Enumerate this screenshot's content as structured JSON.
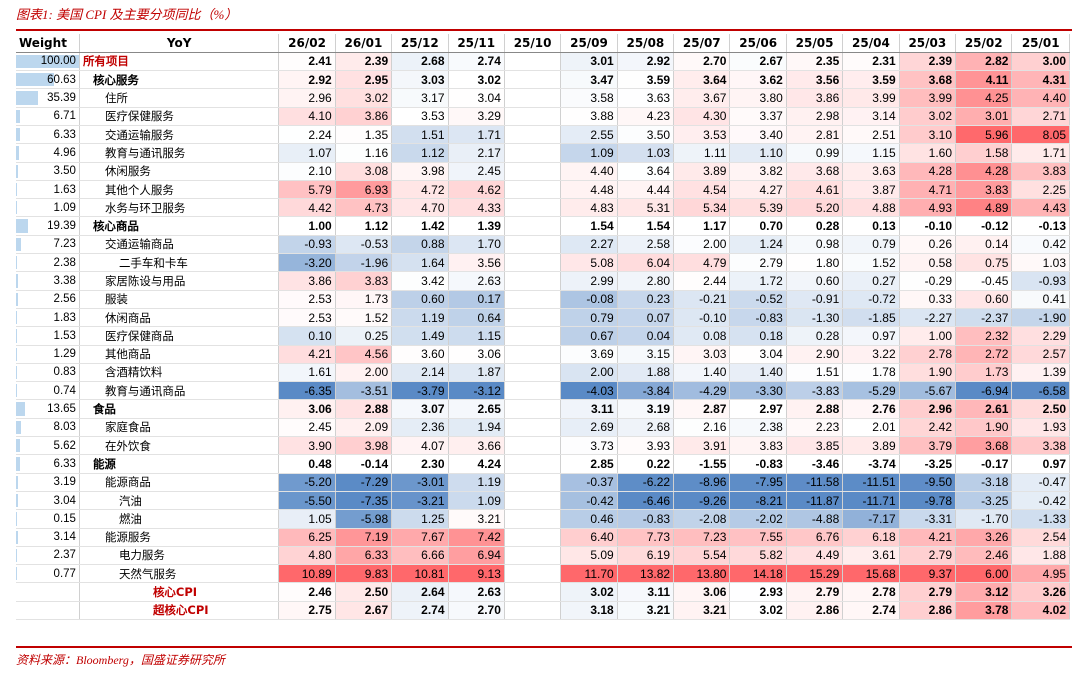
{
  "title": "图表1:  美国 CPI 及主要分项同比（%）",
  "source": "资料来源：Bloomberg，国盛证券研究所",
  "columns": [
    "Weight",
    "YoY",
    "26/02",
    "26/01",
    "25/12",
    "25/11",
    "25/10",
    "25/09",
    "25/08",
    "25/07",
    "25/06",
    "25/05",
    "25/04",
    "25/03",
    "25/02",
    "25/01"
  ],
  "rows": [
    {
      "weight": "100.00",
      "name": "所有项目",
      "indent": 0,
      "bold": true,
      "red": true,
      "values": [
        "2.41",
        "2.39",
        "2.68",
        "2.74",
        "",
        "3.01",
        "2.92",
        "2.70",
        "2.67",
        "2.35",
        "2.31",
        "2.39",
        "2.82",
        "3.00"
      ]
    },
    {
      "weight": "60.63",
      "name": "核心服务",
      "indent": 1,
      "bold": true,
      "red": false,
      "values": [
        "2.92",
        "2.95",
        "3.03",
        "3.02",
        "",
        "3.47",
        "3.59",
        "3.64",
        "3.62",
        "3.56",
        "3.59",
        "3.68",
        "4.11",
        "4.31"
      ]
    },
    {
      "weight": "35.39",
      "name": "住所",
      "indent": 2,
      "bold": false,
      "red": false,
      "values": [
        "2.96",
        "3.02",
        "3.17",
        "3.04",
        "",
        "3.58",
        "3.63",
        "3.67",
        "3.80",
        "3.86",
        "3.99",
        "3.99",
        "4.25",
        "4.40"
      ]
    },
    {
      "weight": "6.71",
      "name": "医疗保健服务",
      "indent": 2,
      "bold": false,
      "red": false,
      "values": [
        "4.10",
        "3.86",
        "3.53",
        "3.29",
        "",
        "3.88",
        "4.23",
        "4.30",
        "3.37",
        "2.98",
        "3.14",
        "3.02",
        "3.01",
        "2.71"
      ]
    },
    {
      "weight": "6.33",
      "name": "交通运输服务",
      "indent": 2,
      "bold": false,
      "red": false,
      "values": [
        "2.24",
        "1.35",
        "1.51",
        "1.71",
        "",
        "2.55",
        "3.50",
        "3.53",
        "3.40",
        "2.81",
        "2.51",
        "3.10",
        "5.96",
        "8.05"
      ]
    },
    {
      "weight": "4.96",
      "name": "教育与通讯服务",
      "indent": 2,
      "bold": false,
      "red": false,
      "values": [
        "1.07",
        "1.16",
        "1.12",
        "2.17",
        "",
        "1.09",
        "1.03",
        "1.11",
        "1.10",
        "0.99",
        "1.15",
        "1.60",
        "1.58",
        "1.71"
      ]
    },
    {
      "weight": "3.50",
      "name": "休闲服务",
      "indent": 2,
      "bold": false,
      "red": false,
      "values": [
        "2.10",
        "3.08",
        "3.98",
        "2.45",
        "",
        "4.40",
        "3.64",
        "3.89",
        "3.82",
        "3.68",
        "3.63",
        "4.28",
        "4.28",
        "3.83"
      ]
    },
    {
      "weight": "1.63",
      "name": "其他个人服务",
      "indent": 2,
      "bold": false,
      "red": false,
      "values": [
        "5.79",
        "6.93",
        "4.72",
        "4.62",
        "",
        "4.48",
        "4.44",
        "4.54",
        "4.27",
        "4.61",
        "3.87",
        "4.71",
        "3.83",
        "2.25"
      ]
    },
    {
      "weight": "1.09",
      "name": "水务与环卫服务",
      "indent": 2,
      "bold": false,
      "red": false,
      "values": [
        "4.42",
        "4.73",
        "4.70",
        "4.33",
        "",
        "4.83",
        "5.31",
        "5.34",
        "5.39",
        "5.20",
        "4.88",
        "4.93",
        "4.89",
        "4.43"
      ]
    },
    {
      "weight": "19.39",
      "name": "核心商品",
      "indent": 1,
      "bold": true,
      "red": false,
      "values": [
        "1.00",
        "1.12",
        "1.42",
        "1.39",
        "",
        "1.54",
        "1.54",
        "1.17",
        "0.70",
        "0.28",
        "0.13",
        "-0.10",
        "-0.12",
        "-0.13"
      ]
    },
    {
      "weight": "7.23",
      "name": "交通运输商品",
      "indent": 2,
      "bold": false,
      "red": false,
      "values": [
        "-0.93",
        "-0.53",
        "0.88",
        "1.70",
        "",
        "2.27",
        "2.58",
        "2.00",
        "1.24",
        "0.98",
        "0.79",
        "0.26",
        "0.14",
        "0.42"
      ]
    },
    {
      "weight": "2.38",
      "name": "二手车和卡车",
      "indent": 3,
      "bold": false,
      "red": false,
      "values": [
        "-3.20",
        "-1.96",
        "1.64",
        "3.56",
        "",
        "5.08",
        "6.04",
        "4.79",
        "2.79",
        "1.80",
        "1.52",
        "0.58",
        "0.75",
        "1.03"
      ]
    },
    {
      "weight": "3.38",
      "name": "家居陈设与用品",
      "indent": 2,
      "bold": false,
      "red": false,
      "values": [
        "3.86",
        "3.83",
        "3.42",
        "2.63",
        "",
        "2.99",
        "2.80",
        "2.44",
        "1.72",
        "0.60",
        "0.27",
        "-0.29",
        "-0.45",
        "-0.93"
      ]
    },
    {
      "weight": "2.56",
      "name": "服装",
      "indent": 2,
      "bold": false,
      "red": false,
      "values": [
        "2.53",
        "1.73",
        "0.60",
        "0.17",
        "",
        "-0.08",
        "0.23",
        "-0.21",
        "-0.52",
        "-0.91",
        "-0.72",
        "0.33",
        "0.60",
        "0.41"
      ]
    },
    {
      "weight": "1.83",
      "name": "休闲商品",
      "indent": 2,
      "bold": false,
      "red": false,
      "values": [
        "2.53",
        "1.52",
        "1.19",
        "0.64",
        "",
        "0.79",
        "0.07",
        "-0.10",
        "-0.83",
        "-1.30",
        "-1.85",
        "-2.27",
        "-2.37",
        "-1.90"
      ]
    },
    {
      "weight": "1.53",
      "name": "医疗保健商品",
      "indent": 2,
      "bold": false,
      "red": false,
      "values": [
        "0.10",
        "0.25",
        "1.49",
        "1.15",
        "",
        "0.67",
        "0.04",
        "0.08",
        "0.18",
        "0.28",
        "0.97",
        "1.00",
        "2.32",
        "2.29"
      ]
    },
    {
      "weight": "1.29",
      "name": "其他商品",
      "indent": 2,
      "bold": false,
      "red": false,
      "values": [
        "4.21",
        "4.56",
        "3.60",
        "3.06",
        "",
        "3.69",
        "3.15",
        "3.03",
        "3.04",
        "2.90",
        "3.22",
        "2.78",
        "2.72",
        "2.57"
      ]
    },
    {
      "weight": "0.83",
      "name": "含酒精饮料",
      "indent": 2,
      "bold": false,
      "red": false,
      "values": [
        "1.61",
        "2.00",
        "2.14",
        "1.87",
        "",
        "2.00",
        "1.88",
        "1.40",
        "1.40",
        "1.51",
        "1.78",
        "1.90",
        "1.73",
        "1.39"
      ]
    },
    {
      "weight": "0.74",
      "name": "教育与通讯商品",
      "indent": 2,
      "bold": false,
      "red": false,
      "values": [
        "-6.35",
        "-3.51",
        "-3.79",
        "-3.12",
        "",
        "-4.03",
        "-3.84",
        "-4.29",
        "-3.30",
        "-3.83",
        "-5.29",
        "-5.67",
        "-6.94",
        "-6.58"
      ]
    },
    {
      "weight": "13.65",
      "name": "食品",
      "indent": 1,
      "bold": true,
      "red": false,
      "values": [
        "3.06",
        "2.88",
        "3.07",
        "2.65",
        "",
        "3.11",
        "3.19",
        "2.87",
        "2.97",
        "2.88",
        "2.76",
        "2.96",
        "2.61",
        "2.50"
      ]
    },
    {
      "weight": "8.03",
      "name": "家庭食品",
      "indent": 2,
      "bold": false,
      "red": false,
      "values": [
        "2.45",
        "2.09",
        "2.36",
        "1.94",
        "",
        "2.69",
        "2.68",
        "2.16",
        "2.38",
        "2.23",
        "2.01",
        "2.42",
        "1.90",
        "1.93"
      ]
    },
    {
      "weight": "5.62",
      "name": "在外饮食",
      "indent": 2,
      "bold": false,
      "red": false,
      "values": [
        "3.90",
        "3.98",
        "4.07",
        "3.66",
        "",
        "3.73",
        "3.93",
        "3.91",
        "3.83",
        "3.85",
        "3.89",
        "3.79",
        "3.68",
        "3.38"
      ]
    },
    {
      "weight": "6.33",
      "name": "能源",
      "indent": 1,
      "bold": true,
      "red": false,
      "values": [
        "0.48",
        "-0.14",
        "2.30",
        "4.24",
        "",
        "2.85",
        "0.22",
        "-1.55",
        "-0.83",
        "-3.46",
        "-3.74",
        "-3.25",
        "-0.17",
        "0.97"
      ]
    },
    {
      "weight": "3.19",
      "name": "能源商品",
      "indent": 2,
      "bold": false,
      "red": false,
      "values": [
        "-5.20",
        "-7.29",
        "-3.01",
        "1.19",
        "",
        "-0.37",
        "-6.22",
        "-8.96",
        "-7.95",
        "-11.58",
        "-11.51",
        "-9.50",
        "-3.18",
        "-0.47"
      ]
    },
    {
      "weight": "3.04",
      "name": "汽油",
      "indent": 3,
      "bold": false,
      "red": false,
      "values": [
        "-5.50",
        "-7.35",
        "-3.21",
        "1.09",
        "",
        "-0.42",
        "-6.46",
        "-9.26",
        "-8.21",
        "-11.87",
        "-11.71",
        "-9.78",
        "-3.25",
        "-0.42"
      ]
    },
    {
      "weight": "0.15",
      "name": "燃油",
      "indent": 3,
      "bold": false,
      "red": false,
      "values": [
        "1.05",
        "-5.98",
        "1.25",
        "3.21",
        "",
        "0.46",
        "-0.83",
        "-2.08",
        "-2.02",
        "-4.88",
        "-7.17",
        "-3.31",
        "-1.70",
        "-1.33"
      ]
    },
    {
      "weight": "3.14",
      "name": "能源服务",
      "indent": 2,
      "bold": false,
      "red": false,
      "values": [
        "6.25",
        "7.19",
        "7.67",
        "7.42",
        "",
        "6.40",
        "7.73",
        "7.23",
        "7.55",
        "6.76",
        "6.18",
        "4.21",
        "3.26",
        "2.54"
      ]
    },
    {
      "weight": "2.37",
      "name": "电力服务",
      "indent": 3,
      "bold": false,
      "red": false,
      "values": [
        "4.80",
        "6.33",
        "6.66",
        "6.94",
        "",
        "5.09",
        "6.19",
        "5.54",
        "5.82",
        "4.49",
        "3.61",
        "2.79",
        "2.46",
        "1.88"
      ]
    },
    {
      "weight": "0.77",
      "name": "天然气服务",
      "indent": 3,
      "bold": false,
      "red": false,
      "values": [
        "10.89",
        "9.83",
        "10.81",
        "9.13",
        "",
        "11.70",
        "13.82",
        "13.80",
        "14.18",
        "15.29",
        "15.68",
        "9.37",
        "6.00",
        "4.95"
      ]
    },
    {
      "weight": "",
      "name": "核心CPI",
      "indent": 4,
      "bold": true,
      "red": true,
      "values": [
        "2.46",
        "2.50",
        "2.64",
        "2.63",
        "",
        "3.02",
        "3.11",
        "3.06",
        "2.93",
        "2.79",
        "2.78",
        "2.79",
        "3.12",
        "3.26"
      ]
    },
    {
      "weight": "",
      "name": "超核心CPI",
      "indent": 4,
      "bold": true,
      "red": true,
      "values": [
        "2.75",
        "2.67",
        "2.74",
        "2.70",
        "",
        "3.18",
        "3.21",
        "3.21",
        "3.02",
        "2.86",
        "2.74",
        "2.86",
        "3.78",
        "4.02"
      ]
    }
  ]
}
